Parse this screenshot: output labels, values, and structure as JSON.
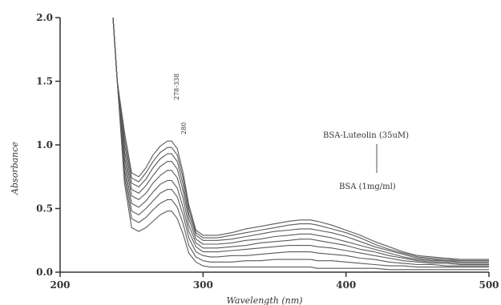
{
  "chart_data": {
    "type": "line",
    "title": "",
    "xlabel": "Wavelength (nm)",
    "ylabel": "Absorbance",
    "xlim": [
      200,
      500
    ],
    "ylim": [
      0,
      2.0
    ],
    "x_ticks": [
      200,
      300,
      400,
      500
    ],
    "y_ticks": [
      0.0,
      0.5,
      1.0,
      1.5,
      2.0
    ],
    "x_tick_labels": [
      "200",
      "300",
      "400",
      "500"
    ],
    "y_tick_labels": [
      "0.0",
      "0.5",
      "1.0",
      "1.5",
      "2.0"
    ],
    "grid": false,
    "annotations": {
      "top_label": "BSA-Luteolin (35uM)",
      "bottom_label": "BSA (1mg/ml)",
      "peak_label_1": "278-338",
      "peak_label_2": "280"
    },
    "x": [
      237,
      240,
      245,
      250,
      255,
      260,
      265,
      270,
      275,
      278,
      282,
      286,
      290,
      295,
      300,
      305,
      310,
      320,
      330,
      340,
      350,
      360,
      368,
      375,
      380,
      390,
      400,
      410,
      420,
      430,
      440,
      450,
      460,
      470,
      480,
      490,
      500
    ],
    "series": [
      {
        "values": [
          2.0,
          1.5,
          0.7,
          0.35,
          0.32,
          0.35,
          0.4,
          0.45,
          0.48,
          0.48,
          0.42,
          0.3,
          0.15,
          0.08,
          0.05,
          0.04,
          0.04,
          0.04,
          0.04,
          0.04,
          0.04,
          0.04,
          0.04,
          0.04,
          0.03,
          0.03,
          0.03,
          0.03,
          0.03,
          0.02,
          0.02,
          0.02,
          0.02,
          0.02,
          0.02,
          0.02,
          0.02
        ]
      },
      {
        "values": [
          2.0,
          1.5,
          0.75,
          0.42,
          0.39,
          0.43,
          0.49,
          0.54,
          0.57,
          0.57,
          0.51,
          0.38,
          0.21,
          0.12,
          0.09,
          0.08,
          0.08,
          0.08,
          0.09,
          0.09,
          0.1,
          0.1,
          0.1,
          0.1,
          0.09,
          0.09,
          0.08,
          0.07,
          0.06,
          0.05,
          0.05,
          0.04,
          0.04,
          0.04,
          0.04,
          0.04,
          0.04
        ]
      },
      {
        "values": [
          2.0,
          1.5,
          0.8,
          0.48,
          0.45,
          0.5,
          0.56,
          0.62,
          0.65,
          0.65,
          0.59,
          0.45,
          0.27,
          0.16,
          0.13,
          0.12,
          0.12,
          0.13,
          0.13,
          0.14,
          0.15,
          0.16,
          0.16,
          0.16,
          0.15,
          0.14,
          0.13,
          0.11,
          0.1,
          0.08,
          0.07,
          0.06,
          0.06,
          0.05,
          0.05,
          0.05,
          0.05
        ]
      },
      {
        "values": [
          2.0,
          1.5,
          0.85,
          0.54,
          0.51,
          0.56,
          0.63,
          0.69,
          0.72,
          0.72,
          0.66,
          0.51,
          0.32,
          0.2,
          0.16,
          0.16,
          0.16,
          0.17,
          0.18,
          0.19,
          0.2,
          0.21,
          0.21,
          0.21,
          0.2,
          0.19,
          0.17,
          0.15,
          0.13,
          0.11,
          0.09,
          0.08,
          0.07,
          0.07,
          0.06,
          0.06,
          0.06
        ]
      },
      {
        "values": [
          2.0,
          1.5,
          0.9,
          0.6,
          0.57,
          0.62,
          0.7,
          0.76,
          0.8,
          0.8,
          0.74,
          0.58,
          0.37,
          0.23,
          0.19,
          0.19,
          0.19,
          0.2,
          0.21,
          0.23,
          0.24,
          0.25,
          0.26,
          0.26,
          0.25,
          0.23,
          0.21,
          0.18,
          0.16,
          0.13,
          0.11,
          0.09,
          0.08,
          0.08,
          0.07,
          0.07,
          0.07
        ]
      },
      {
        "values": [
          2.0,
          1.5,
          0.95,
          0.65,
          0.62,
          0.68,
          0.76,
          0.83,
          0.87,
          0.87,
          0.81,
          0.64,
          0.42,
          0.26,
          0.22,
          0.22,
          0.22,
          0.23,
          0.25,
          0.26,
          0.28,
          0.29,
          0.3,
          0.3,
          0.29,
          0.27,
          0.24,
          0.21,
          0.18,
          0.15,
          0.12,
          0.1,
          0.09,
          0.09,
          0.08,
          0.08,
          0.08
        ]
      },
      {
        "values": [
          2.0,
          1.5,
          1.0,
          0.7,
          0.67,
          0.73,
          0.82,
          0.89,
          0.93,
          0.93,
          0.87,
          0.69,
          0.46,
          0.29,
          0.25,
          0.25,
          0.25,
          0.26,
          0.28,
          0.3,
          0.32,
          0.33,
          0.34,
          0.34,
          0.33,
          0.31,
          0.28,
          0.24,
          0.2,
          0.17,
          0.14,
          0.11,
          0.1,
          0.09,
          0.09,
          0.09,
          0.09
        ]
      },
      {
        "values": [
          2.0,
          1.5,
          1.05,
          0.74,
          0.71,
          0.78,
          0.87,
          0.94,
          0.98,
          0.98,
          0.92,
          0.74,
          0.5,
          0.31,
          0.27,
          0.27,
          0.27,
          0.29,
          0.31,
          0.33,
          0.35,
          0.37,
          0.38,
          0.38,
          0.37,
          0.34,
          0.31,
          0.27,
          0.22,
          0.18,
          0.15,
          0.12,
          0.11,
          0.1,
          0.1,
          0.1,
          0.1
        ]
      },
      {
        "values": [
          2.0,
          1.5,
          1.1,
          0.78,
          0.75,
          0.82,
          0.92,
          0.99,
          1.03,
          1.03,
          0.97,
          0.78,
          0.53,
          0.33,
          0.29,
          0.29,
          0.29,
          0.31,
          0.34,
          0.36,
          0.38,
          0.4,
          0.41,
          0.41,
          0.4,
          0.37,
          0.33,
          0.29,
          0.24,
          0.2,
          0.16,
          0.13,
          0.12,
          0.11,
          0.1,
          0.1,
          0.1
        ]
      }
    ],
    "colors": {
      "lines": "#5a5a5a",
      "axis": "#333333"
    }
  }
}
